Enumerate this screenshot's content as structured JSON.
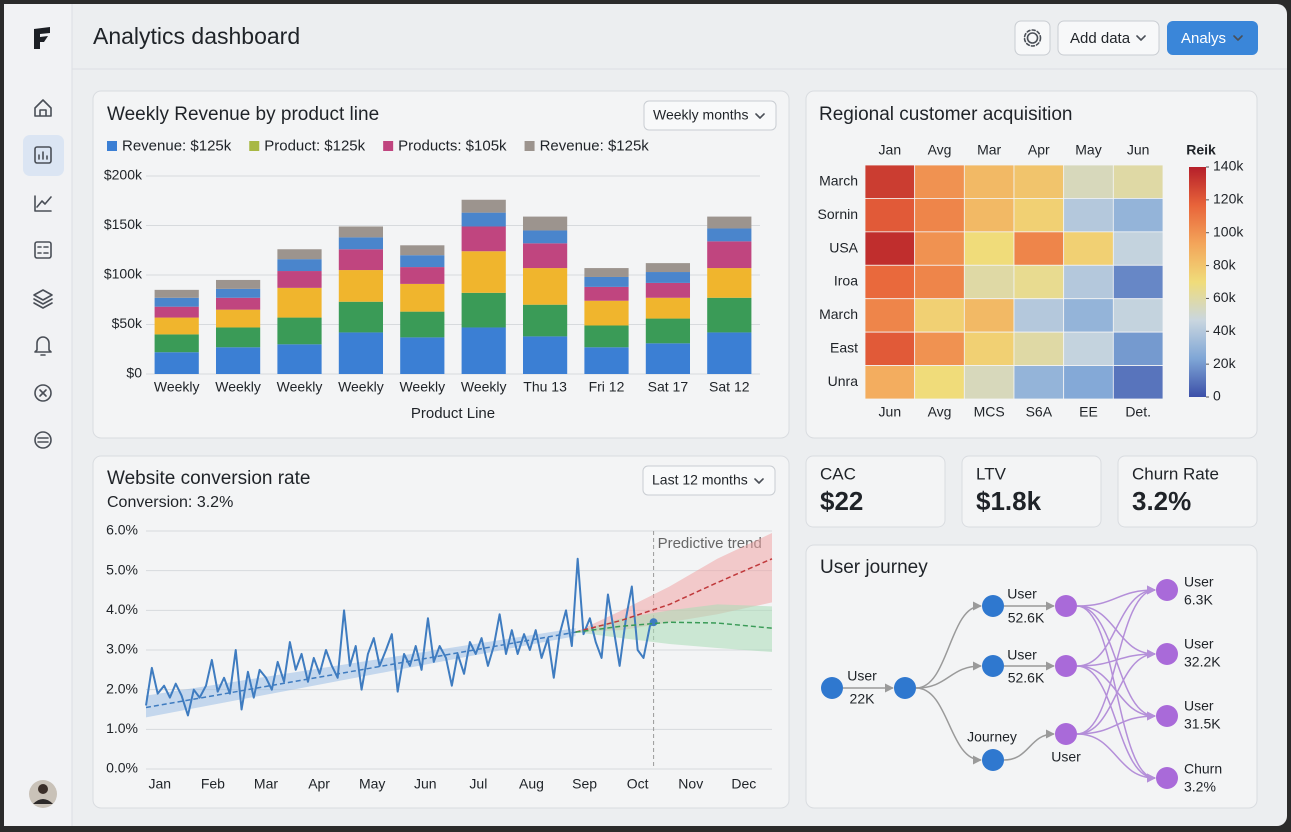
{
  "header": {
    "title": "Analytics dashboard",
    "buttons": [
      "Add data",
      "Analys"
    ]
  },
  "chart_data": [
    {
      "type": "stacked_bar",
      "title": "Weekly Revenue by product line",
      "dropdown": "Weekly months",
      "legend": [
        {
          "name": "Revenue: $125k",
          "color": "#3b7fd4"
        },
        {
          "name": "Product: $125k",
          "color": "#a8b843"
        },
        {
          "name": "Products: $105k",
          "color": "#c0457f"
        },
        {
          "name": "Revenue: $125k",
          "color": "#9c948e"
        }
      ],
      "categories": [
        "Weekly",
        "Weekly",
        "Weekly",
        "Weekly",
        "Weekly",
        "Weekly",
        "Thu 13",
        "Fri 12",
        "Sat 17",
        "Sat 12"
      ],
      "xlabel": "Product Line",
      "series": [
        {
          "color": "#3b7fd4",
          "values": [
            22,
            27,
            30,
            42,
            37,
            47,
            38,
            27,
            31,
            42
          ]
        },
        {
          "color": "#3a9b57",
          "values": [
            18,
            20,
            27,
            31,
            26,
            35,
            32,
            22,
            25,
            35
          ]
        },
        {
          "color": "#f0b52d",
          "values": [
            17,
            18,
            30,
            32,
            28,
            42,
            37,
            25,
            21,
            30
          ]
        },
        {
          "color": "#c0457f",
          "values": [
            11,
            12,
            17,
            21,
            17,
            25,
            25,
            14,
            15,
            27
          ]
        },
        {
          "color": "#4a85cc",
          "values": [
            9,
            9,
            12,
            12,
            12,
            14,
            13,
            10,
            11,
            13
          ]
        },
        {
          "color": "#9c948e",
          "values": [
            8,
            9,
            10,
            11,
            10,
            13,
            14,
            9,
            9,
            12
          ]
        }
      ],
      "ylim": [
        0,
        200
      ],
      "yticks": [
        {
          "value": 0,
          "label": "$0"
        },
        {
          "value": 50,
          "label": "$50k"
        },
        {
          "value": 100,
          "label": "$100k"
        },
        {
          "value": 150,
          "label": "$150k"
        },
        {
          "value": 200,
          "label": "$200k"
        }
      ],
      "grid": true
    },
    {
      "type": "heatmap",
      "title": "Regional customer acquisition",
      "x_top": [
        "Jan",
        "Avg",
        "Mar",
        "Apr",
        "May",
        "Jun"
      ],
      "x_bottom": [
        "Jun",
        "Avg",
        "MCS",
        "S6A",
        "EE",
        "Det."
      ],
      "rows": [
        "March",
        "Sornin",
        "USA",
        "Iroa",
        "March",
        "East",
        "Unra"
      ],
      "values": [
        [
          130,
          100,
          85,
          80,
          55,
          60
        ],
        [
          120,
          105,
          85,
          75,
          40,
          30
        ],
        [
          135,
          100,
          70,
          105,
          75,
          45
        ],
        [
          115,
          105,
          60,
          65,
          40,
          15
        ],
        [
          105,
          75,
          85,
          40,
          30,
          45
        ],
        [
          120,
          100,
          75,
          60,
          45,
          20
        ],
        [
          90,
          70,
          55,
          30,
          25,
          10
        ]
      ],
      "colorbar_title": "Reik",
      "zlim": [
        0,
        140
      ],
      "zticks": [
        0,
        {
          "value": 20,
          "label": "20k"
        },
        {
          "value": 40,
          "label": "40k"
        },
        {
          "value": 60,
          "label": "60k"
        },
        {
          "value": 80,
          "label": "80k"
        },
        {
          "value": 100,
          "label": "100k"
        },
        {
          "value": 120,
          "label": "120k"
        },
        {
          "value": 140,
          "label": "140k"
        }
      ],
      "colormap": [
        "#3b4fa8",
        "#7fa6d6",
        "#c9d6df",
        "#f0dc7a",
        "#f3a55a",
        "#e8643a",
        "#b51f2a"
      ]
    },
    {
      "type": "line",
      "title": "Website conversion rate",
      "subtitle": "Conversion: 3.2%",
      "dropdown": "Last 12 months",
      "xlim": [
        0.74,
        12.53
      ],
      "xticks": [
        {
          "value": 1,
          "label": "Jan"
        },
        {
          "value": 2,
          "label": "Feb"
        },
        {
          "value": 3,
          "label": "Mar"
        },
        {
          "value": 4,
          "label": "Apr"
        },
        {
          "value": 5,
          "label": "May"
        },
        {
          "value": 6,
          "label": "Jun"
        },
        {
          "value": 7,
          "label": "Jul"
        },
        {
          "value": 8,
          "label": "Aug"
        },
        {
          "value": 9,
          "label": "Sep"
        },
        {
          "value": 10,
          "label": "Oct"
        },
        {
          "value": 11,
          "label": "Nov"
        },
        {
          "value": 12,
          "label": "Dec"
        }
      ],
      "ylim": [
        0,
        6
      ],
      "yticks": [
        {
          "value": 0,
          "label": "0.0%"
        },
        {
          "value": 1,
          "label": "1.0%"
        },
        {
          "value": 2,
          "label": "2.0%"
        },
        {
          "value": 3,
          "label": "3.0%"
        },
        {
          "value": 4,
          "label": "4.0%"
        },
        {
          "value": 5,
          "label": "5.0%"
        },
        {
          "value": 6,
          "label": "6.0%"
        }
      ],
      "grid": true,
      "annotations": [
        {
          "text": "Predictive trend",
          "x": 10.3
        }
      ],
      "series": [
        {
          "color": "#3f7cc0",
          "style": "solid",
          "x": [
            0.74,
            0.85,
            0.96,
            1.08,
            1.19,
            1.3,
            1.41,
            1.53,
            1.64,
            1.75,
            1.87,
            1.98,
            2.09,
            2.21,
            2.32,
            2.43,
            2.54,
            2.66,
            2.77,
            2.88,
            3.0,
            3.11,
            3.22,
            3.34,
            3.45,
            3.56,
            3.67,
            3.79,
            3.9,
            4.01,
            4.13,
            4.24,
            4.35,
            4.47,
            4.58,
            4.69,
            4.8,
            4.92,
            5.03,
            5.14,
            5.26,
            5.37,
            5.48,
            5.6,
            5.71,
            5.82,
            5.93,
            6.05,
            6.16,
            6.27,
            6.39,
            6.5,
            6.61,
            6.73,
            6.84,
            6.95,
            7.06,
            7.18,
            7.29,
            7.4,
            7.52,
            7.63,
            7.74,
            7.86,
            7.97,
            8.08,
            8.19,
            8.31,
            8.42,
            8.53,
            8.65,
            8.76,
            8.87,
            8.98,
            9.1,
            9.21,
            9.32,
            9.44,
            9.55,
            9.66,
            9.78,
            9.89,
            10.0,
            10.11,
            10.23,
            10.3
          ],
          "values": [
            1.6,
            2.55,
            1.9,
            2.1,
            1.8,
            2.15,
            1.85,
            1.35,
            2.0,
            1.8,
            2.1,
            2.75,
            1.95,
            2.3,
            1.9,
            3.0,
            1.5,
            2.45,
            1.8,
            2.5,
            2.3,
            2.0,
            2.7,
            2.2,
            3.2,
            2.5,
            2.9,
            2.2,
            2.8,
            2.4,
            3.0,
            2.6,
            2.3,
            4.0,
            2.6,
            3.1,
            2.0,
            2.9,
            3.3,
            2.6,
            3.0,
            3.4,
            1.95,
            2.9,
            2.6,
            3.1,
            2.5,
            3.8,
            2.7,
            3.1,
            2.8,
            2.1,
            2.9,
            2.4,
            3.2,
            2.9,
            3.3,
            2.6,
            3.1,
            3.9,
            2.9,
            3.5,
            2.9,
            3.4,
            3.0,
            3.5,
            2.8,
            3.3,
            2.3,
            3.4,
            4.0,
            3.1,
            5.3,
            3.4,
            3.8,
            3.2,
            2.8,
            4.4,
            3.5,
            2.6,
            3.8,
            4.6,
            3.0,
            2.8,
            3.6,
            3.7
          ]
        },
        {
          "color": "#3f7cc0",
          "band": "#9cc0e6",
          "style": "dashed",
          "x": [
            0.74,
            8.83
          ],
          "values": [
            1.55,
            3.45
          ],
          "lower": [
            1.3,
            3.35
          ],
          "upper": [
            1.85,
            3.55
          ]
        },
        {
          "color": "#c0393b",
          "band": "#f0a5a5",
          "style": "dashed",
          "x": [
            8.83,
            9.7,
            10.6,
            11.5,
            12.53
          ],
          "values": [
            3.45,
            3.75,
            4.15,
            4.7,
            5.3
          ],
          "lower": [
            3.45,
            3.5,
            3.7,
            3.9,
            4.2
          ],
          "upper": [
            3.45,
            4.0,
            4.6,
            5.3,
            5.95
          ]
        },
        {
          "color": "#3a9b57",
          "band": "#a9dcb6",
          "style": "dashed",
          "x": [
            8.83,
            9.7,
            10.6,
            11.5,
            12.53
          ],
          "values": [
            3.45,
            3.6,
            3.7,
            3.68,
            3.55
          ],
          "lower": [
            3.45,
            3.3,
            3.15,
            3.05,
            2.95
          ],
          "upper": [
            3.45,
            3.8,
            4.0,
            4.15,
            4.1
          ]
        }
      ]
    }
  ],
  "kpis": [
    {
      "label": "CAC",
      "value": "$22"
    },
    {
      "label": "LTV",
      "value": "$1.8k"
    },
    {
      "label": "Churn Rate",
      "value": "3.2%"
    }
  ],
  "journey": {
    "title": "User journey",
    "labels": [
      [
        "User",
        "22K"
      ],
      [
        "User",
        "52.6K"
      ],
      [
        "User",
        "52.6K"
      ],
      [
        "Journey"
      ],
      [
        "User"
      ],
      [
        "User",
        "6.3K"
      ],
      [
        "User",
        "32.2K"
      ],
      [
        "User",
        "31.5K"
      ],
      [
        "Churn",
        "3.2%"
      ]
    ]
  }
}
